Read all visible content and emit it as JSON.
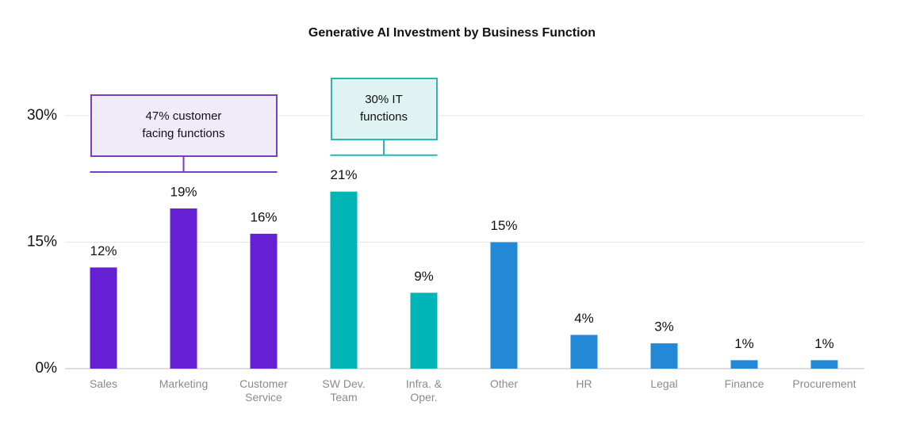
{
  "chart_data": {
    "type": "bar",
    "title": "Generative AI Investment by Business Function",
    "categories": [
      "Sales",
      "Marketing",
      "Customer\nService",
      "SW Dev.\nTeam",
      "Infra. &\nOper.",
      "Other",
      "HR",
      "Legal",
      "Finance",
      "Procurement"
    ],
    "values": [
      12,
      19,
      16,
      21,
      9,
      15,
      4,
      3,
      1,
      1
    ],
    "value_labels": [
      "12%",
      "19%",
      "16%",
      "21%",
      "9%",
      "15%",
      "4%",
      "3%",
      "1%",
      "1%"
    ],
    "colors": [
      "#6420d2",
      "#6420d2",
      "#6420d2",
      "#00b5b5",
      "#00b5b5",
      "#2389d6",
      "#2389d6",
      "#2389d6",
      "#2389d6",
      "#2389d6"
    ],
    "ylim": [
      0,
      30
    ],
    "yticks": [
      {
        "value": 0,
        "label": "0%"
      },
      {
        "value": 15,
        "label": "15%"
      },
      {
        "value": 30,
        "label": "30%"
      }
    ],
    "grid": true,
    "annotations": [
      {
        "text": "47% customer\nfacing functions",
        "color": "#6420d2",
        "border": "#7a3fc0",
        "fill": "#efebf9"
      },
      {
        "text": "30% IT\nfunctions",
        "color": "#00b5b5",
        "border": "#2bb5b5",
        "fill": "#dff3f3"
      }
    ]
  }
}
